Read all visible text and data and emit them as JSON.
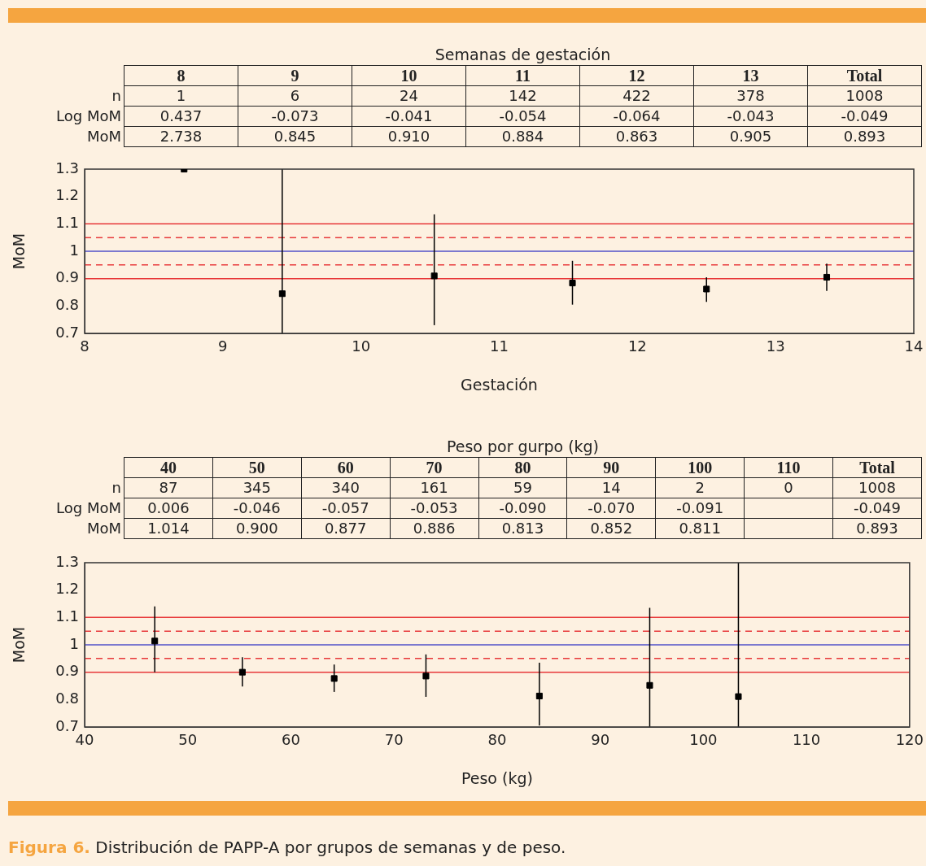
{
  "chart_data": [
    {
      "type": "heatmap",
      "title": "Semanas de gestación",
      "categories": [
        "8",
        "9",
        "10",
        "11",
        "12",
        "13",
        "Total"
      ],
      "y_categories": [
        "n",
        "Log MoM",
        "MoM"
      ],
      "cells": [
        [
          1,
          6,
          24,
          142,
          422,
          378,
          1008
        ],
        [
          0.437,
          -0.073,
          -0.041,
          -0.054,
          -0.064,
          -0.043,
          -0.049
        ],
        [
          2.738,
          0.845,
          0.91,
          0.884,
          0.863,
          0.905,
          0.893
        ]
      ],
      "cell_labels": [
        [
          "1",
          "6",
          "24",
          "142",
          "422",
          "378",
          "1008"
        ],
        [
          "0.437",
          "-0.073",
          "-0.041",
          "-0.054",
          "-0.064",
          "-0.043",
          "-0.049"
        ],
        [
          "2.738",
          "0.845",
          "0.910",
          "0.884",
          "0.863",
          "0.905",
          "0.893"
        ]
      ]
    },
    {
      "type": "scatter",
      "xlabel": "Gestación",
      "ylabel": "MoM",
      "color": "#000000",
      "marker": "square",
      "grid": false,
      "legend": false,
      "x": [
        8.72,
        9.43,
        10.53,
        11.53,
        12.5,
        13.37
      ],
      "values": [
        1.3,
        0.845,
        0.91,
        0.884,
        0.862,
        0.905
      ],
      "errors": [
        null,
        [
          0.7,
          1.3
        ],
        [
          0.73,
          1.135
        ],
        [
          0.805,
          0.965
        ],
        [
          0.815,
          0.905
        ],
        [
          0.855,
          0.955
        ]
      ],
      "xlim": [
        8,
        14
      ],
      "xticks": [
        8,
        9,
        10,
        11,
        12,
        13,
        14
      ],
      "ylim": [
        0.7,
        1.3
      ],
      "yticks": [
        0.7,
        0.8,
        0.9,
        1,
        1.1,
        1.2,
        1.3
      ],
      "ref_lines": [
        {
          "axis": "y",
          "value": 1.1,
          "color": "#e8383a",
          "line_style": "solid"
        },
        {
          "axis": "y",
          "value": 1.05,
          "color": "#e8383a",
          "line_style": "dashed"
        },
        {
          "axis": "y",
          "value": 1,
          "color": "#5050c8",
          "line_style": "solid"
        },
        {
          "axis": "y",
          "value": 0.95,
          "color": "#e8383a",
          "line_style": "dashed"
        },
        {
          "axis": "y",
          "value": 0.9,
          "color": "#e8383a",
          "line_style": "solid"
        }
      ]
    },
    {
      "type": "heatmap",
      "title": "Peso por gurpo (kg)",
      "categories": [
        "40",
        "50",
        "60",
        "70",
        "80",
        "90",
        "100",
        "110",
        "Total"
      ],
      "y_categories": [
        "n",
        "Log MoM",
        "MoM"
      ],
      "cells": [
        [
          87,
          345,
          340,
          161,
          59,
          14,
          2,
          0,
          1008
        ],
        [
          0.006,
          -0.046,
          -0.057,
          -0.053,
          -0.09,
          -0.07,
          -0.091,
          null,
          -0.049
        ],
        [
          1.014,
          0.9,
          0.877,
          0.886,
          0.813,
          0.852,
          0.811,
          null,
          0.893
        ]
      ],
      "cell_labels": [
        [
          "87",
          "345",
          "340",
          "161",
          "59",
          "14",
          "2",
          "0",
          "1008"
        ],
        [
          "0.006",
          "-0.046",
          "-0.057",
          "-0.053",
          "-0.090",
          "-0.070",
          "-0.091",
          null,
          "-0.049"
        ],
        [
          "1.014",
          "0.900",
          "0.877",
          "0.886",
          "0.813",
          "0.852",
          "0.811",
          null,
          "0.893"
        ]
      ]
    },
    {
      "type": "scatter",
      "xlabel": "Peso (kg)",
      "ylabel": "MoM",
      "color": "#000000",
      "marker": "square",
      "grid": false,
      "legend": false,
      "x": [
        46.8,
        55.3,
        64.2,
        73.1,
        84.1,
        94.8,
        103.4
      ],
      "values": [
        1.014,
        0.9,
        0.877,
        0.886,
        0.813,
        0.852,
        0.811
      ],
      "errors": [
        [
          0.9,
          1.14
        ],
        [
          0.848,
          0.955
        ],
        [
          0.828,
          0.928
        ],
        [
          0.81,
          0.965
        ],
        [
          0.705,
          0.935
        ],
        [
          0.7,
          1.135
        ],
        [
          0.7,
          1.3
        ]
      ],
      "xlim": [
        40,
        120
      ],
      "xticks": [
        40,
        50,
        60,
        70,
        80,
        90,
        100,
        110,
        120
      ],
      "ylim": [
        0.7,
        1.3
      ],
      "yticks": [
        0.7,
        0.8,
        0.9,
        1,
        1.1,
        1.2,
        1.3
      ],
      "ref_lines": [
        {
          "axis": "y",
          "value": 1.1,
          "color": "#e8383a",
          "line_style": "solid"
        },
        {
          "axis": "y",
          "value": 1.05,
          "color": "#e8383a",
          "line_style": "dashed"
        },
        {
          "axis": "y",
          "value": 1,
          "color": "#5050c8",
          "line_style": "solid"
        },
        {
          "axis": "y",
          "value": 0.95,
          "color": "#e8383a",
          "line_style": "dashed"
        },
        {
          "axis": "y",
          "value": 0.9,
          "color": "#e8383a",
          "line_style": "solid"
        }
      ],
      "annotations": [
        "Figura 6. Distribución de PAPP-A por grupos de semanas y de peso."
      ]
    }
  ]
}
